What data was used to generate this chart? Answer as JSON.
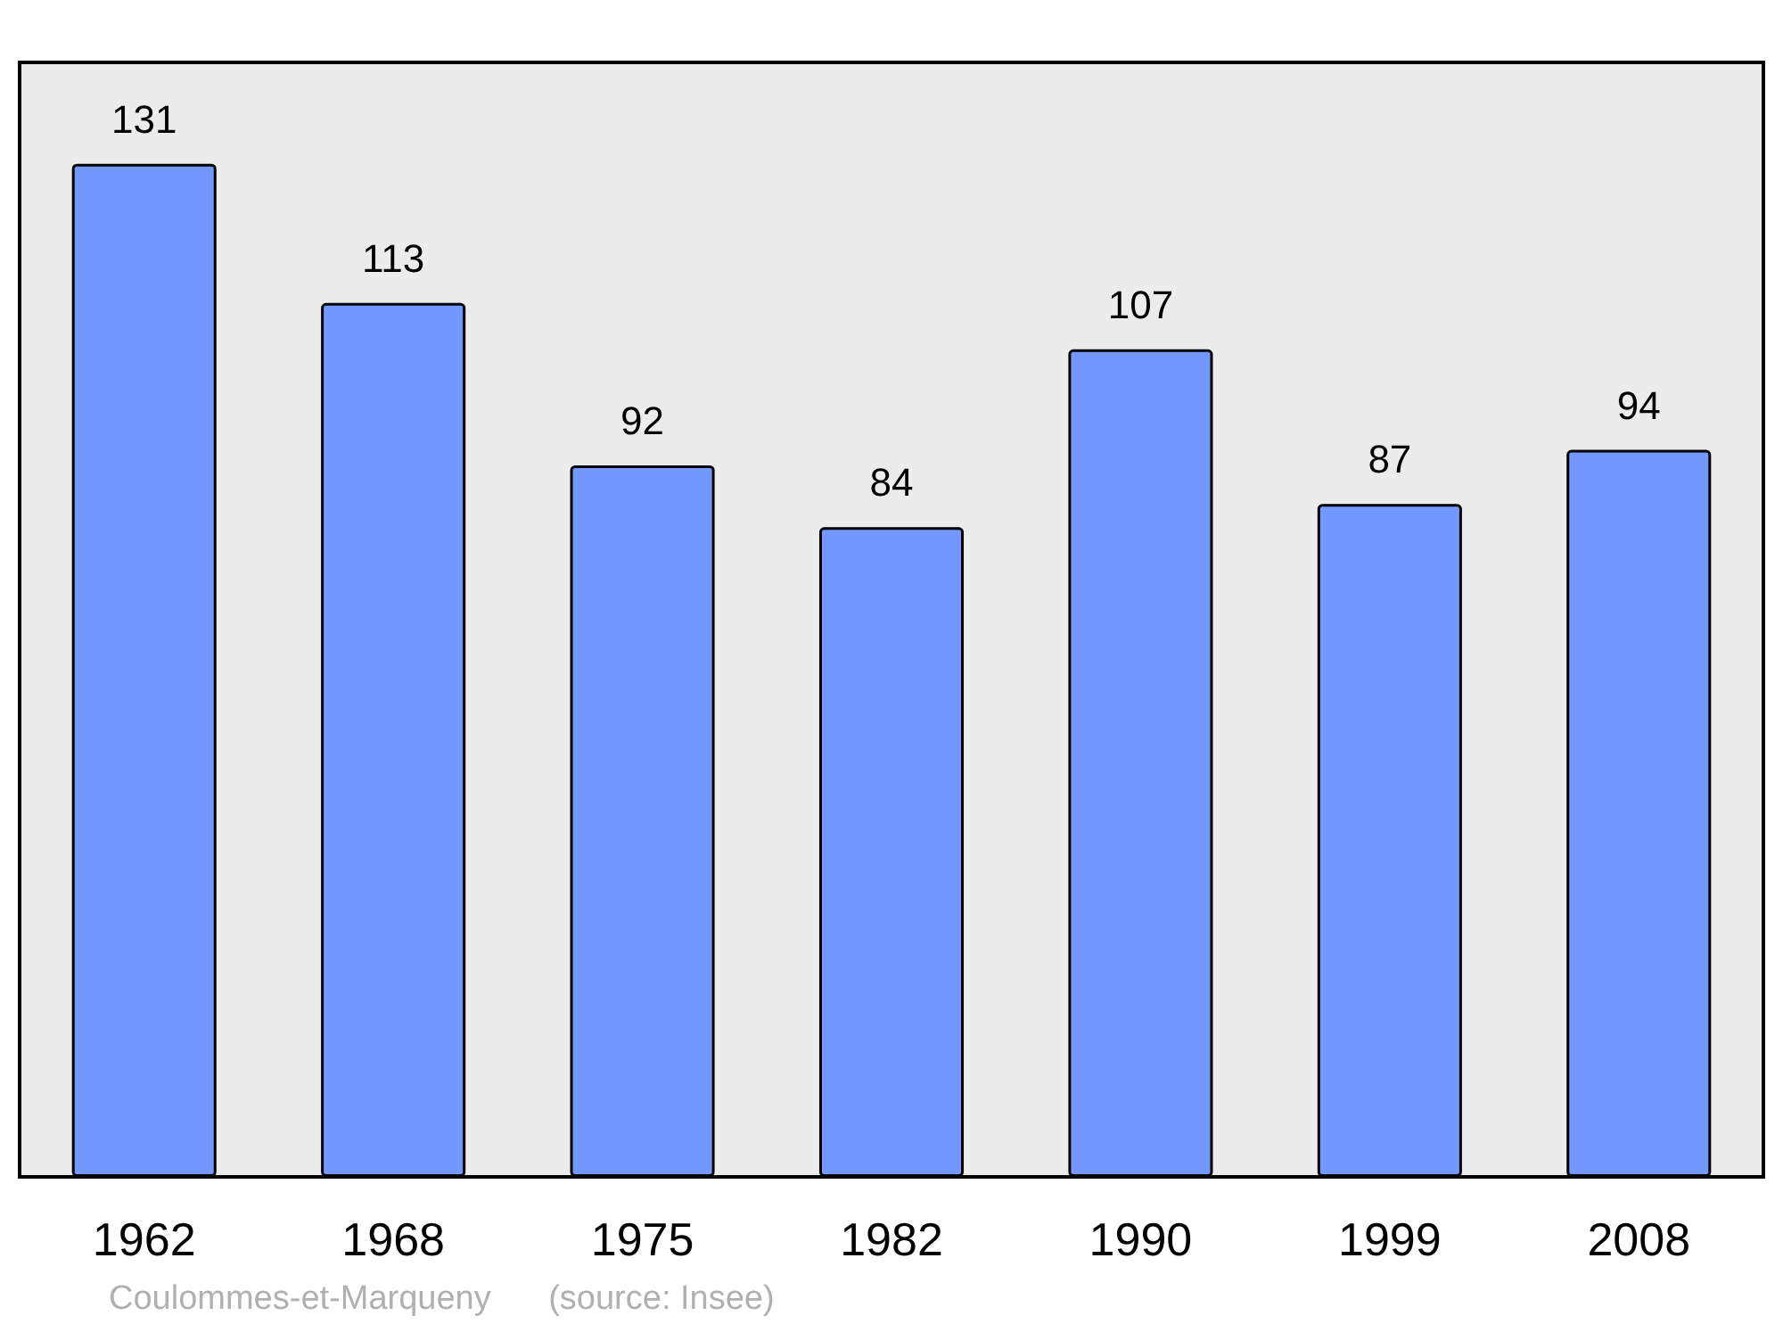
{
  "chart_data": {
    "type": "bar",
    "categories": [
      "1962",
      "1968",
      "1975",
      "1982",
      "1990",
      "1999",
      "2008"
    ],
    "values": [
      131,
      113,
      92,
      84,
      107,
      87,
      94
    ],
    "color": "#7399ff",
    "data_labels": true,
    "annotations": [
      "Coulommes-et-Marqueny",
      "(source: Insee)"
    ]
  }
}
